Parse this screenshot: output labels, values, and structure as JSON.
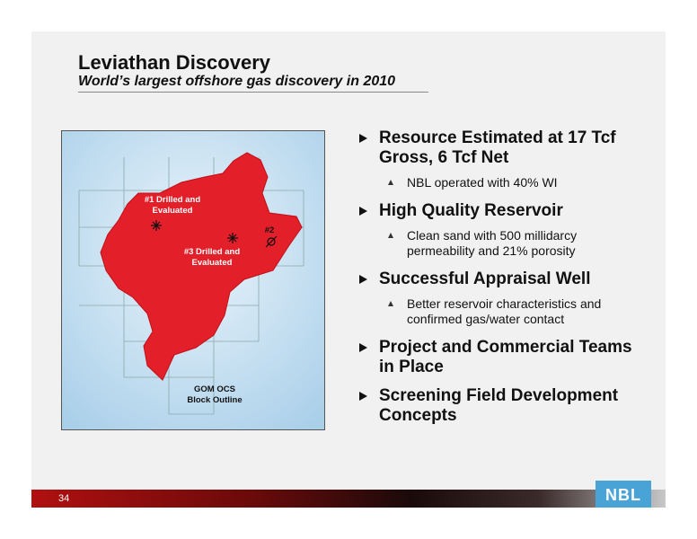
{
  "header": {
    "title": "Leviathan Discovery",
    "subtitle": "World’s largest offshore gas discovery in 2010"
  },
  "map": {
    "labels": [
      {
        "lines": [
          "#1 Drilled and",
          "Evaluated"
        ]
      },
      {
        "lines": [
          "#3 Drilled and",
          "Evaluated"
        ]
      },
      {
        "lines": [
          "#2"
        ]
      },
      {
        "lines": [
          "GOM OCS",
          "Block Outline"
        ]
      }
    ]
  },
  "bullets": [
    {
      "lines": [
        "Resource Estimated at 17 Tcf",
        "Gross, 6 Tcf Net"
      ],
      "sub": [
        {
          "lines": [
            "NBL operated with 40% WI"
          ]
        }
      ]
    },
    {
      "lines": [
        "High Quality Reservoir"
      ],
      "sub": [
        {
          "lines": [
            "Clean sand with 500 millidarcy",
            "permeability and 21% porosity"
          ]
        }
      ]
    },
    {
      "lines": [
        "Successful Appraisal Well"
      ],
      "sub": [
        {
          "lines": [
            "Better reservoir characteristics and",
            "confirmed gas/water contact"
          ]
        }
      ]
    },
    {
      "lines": [
        "Project and Commercial Teams",
        "in Place"
      ],
      "sub": []
    },
    {
      "lines": [
        "Screening Field Development",
        "Concepts"
      ],
      "sub": []
    }
  ],
  "footer": {
    "page": "34",
    "logo": "NBL"
  }
}
